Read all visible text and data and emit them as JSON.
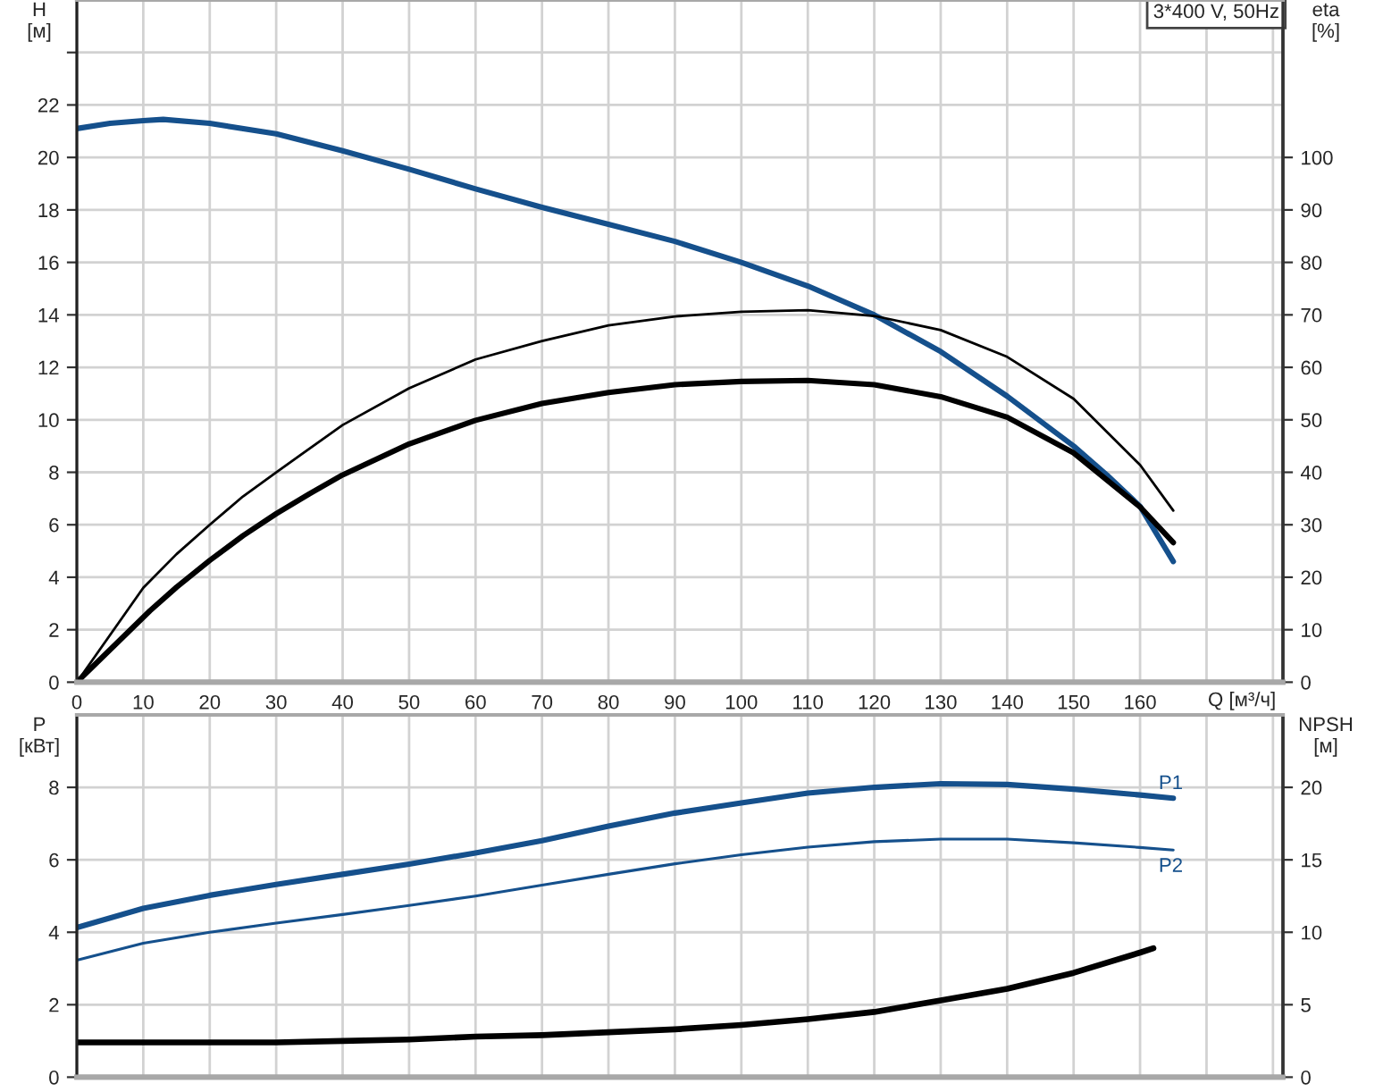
{
  "chart_data": [
    {
      "type": "line",
      "xlabel": "Q [м³/ч]",
      "ylabel": "H\n[м]",
      "y2label": "eta\n[%]",
      "annotations": [
        "3*400 V, 50Hz"
      ],
      "grid": true,
      "xlim": [
        0,
        181.5
      ],
      "xticks": [
        0,
        10,
        20,
        30,
        40,
        50,
        60,
        70,
        80,
        90,
        100,
        110,
        120,
        130,
        140,
        150,
        160,
        {
          "value": 170,
          "label": null
        },
        {
          "value": 180,
          "label": null
        }
      ],
      "ylim": [
        0,
        26
      ],
      "yticks": [
        0,
        2,
        4,
        6,
        8,
        10,
        12,
        14,
        16,
        18,
        20,
        22,
        {
          "value": 24,
          "label": null
        }
      ],
      "y2lim": [
        0,
        130
      ],
      "y2ticks": [
        0,
        10,
        20,
        30,
        40,
        50,
        60,
        70,
        80,
        90,
        100
      ],
      "series": [
        {
          "color": "#15508c",
          "x": [
            0,
            5,
            10,
            13,
            20,
            30,
            40,
            50,
            60,
            70,
            80,
            90,
            100,
            110,
            120,
            130,
            140,
            150,
            155,
            160,
            165
          ],
          "values": [
            21.1,
            21.3,
            21.4,
            21.45,
            21.3,
            20.9,
            20.25,
            19.55,
            18.8,
            18.1,
            17.45,
            16.8,
            16.0,
            15.1,
            14.0,
            12.6,
            10.9,
            9.0,
            7.9,
            6.7,
            4.6
          ]
        },
        {
          "color": "#000000",
          "axis": "y2",
          "x": [
            0,
            10,
            15,
            20,
            25,
            30,
            40,
            50,
            60,
            70,
            80,
            90,
            100,
            110,
            120,
            130,
            140,
            150,
            160,
            165
          ],
          "values": [
            0,
            18,
            24.4,
            30,
            35.4,
            40,
            49,
            56,
            61.5,
            65,
            68,
            69.7,
            70.6,
            70.9,
            69.8,
            67.1,
            62,
            54,
            41.4,
            32.7
          ]
        },
        {
          "color": "#000000",
          "axis": "y2",
          "x": [
            0,
            11,
            15,
            20,
            25,
            30,
            35,
            40,
            50,
            60,
            70,
            80,
            90,
            100,
            110,
            120,
            130,
            140,
            150,
            160,
            165
          ],
          "values": [
            0,
            13.6,
            18.1,
            23.2,
            27.9,
            32.1,
            35.9,
            39.5,
            45.4,
            49.9,
            53.1,
            55.2,
            56.7,
            57.3,
            57.5,
            56.7,
            54.4,
            50.5,
            43.7,
            33.4,
            26.6
          ]
        }
      ]
    },
    {
      "type": "line",
      "ylabel": "P\n[кВт]",
      "y2label": "NPSH\n[м]",
      "grid": true,
      "tick_labels": "y",
      "xlim": [
        0,
        181.5
      ],
      "xticks": [
        0,
        10,
        20,
        30,
        40,
        50,
        60,
        70,
        80,
        90,
        100,
        110,
        120,
        130,
        140,
        150,
        160,
        170,
        180
      ],
      "ylim": [
        0,
        10
      ],
      "yticks": [
        0,
        2,
        4,
        6,
        8
      ],
      "y2lim": [
        0,
        25
      ],
      "y2ticks": [
        0,
        5,
        10,
        15,
        20
      ],
      "series": [
        {
          "name": "P1",
          "color": "#15508c",
          "x": [
            0,
            10,
            20,
            30,
            40,
            50,
            60,
            70,
            80,
            90,
            100,
            110,
            120,
            130,
            140,
            150,
            160,
            165
          ],
          "values": [
            4.13,
            4.66,
            5.02,
            5.32,
            5.6,
            5.88,
            6.19,
            6.53,
            6.93,
            7.29,
            7.57,
            7.84,
            8.0,
            8.1,
            8.08,
            7.95,
            7.79,
            7.7
          ]
        },
        {
          "name": "P2",
          "color": "#15508c",
          "x": [
            0,
            10,
            20,
            30,
            40,
            50,
            60,
            70,
            80,
            90,
            100,
            110,
            120,
            130,
            140,
            150,
            160,
            165
          ],
          "values": [
            3.23,
            3.7,
            4.0,
            4.25,
            4.49,
            4.74,
            5.0,
            5.3,
            5.6,
            5.89,
            6.14,
            6.35,
            6.5,
            6.57,
            6.57,
            6.47,
            6.34,
            6.27
          ]
        },
        {
          "color": "#000000",
          "axis": "y2",
          "x": [
            0,
            11,
            20,
            30,
            40,
            50,
            60,
            70,
            80,
            90,
            100,
            110,
            120,
            130,
            140,
            150,
            160,
            162
          ],
          "values": [
            2.4,
            2.4,
            2.4,
            2.4,
            2.5,
            2.6,
            2.8,
            2.9,
            3.1,
            3.3,
            3.6,
            4.0,
            4.5,
            5.3,
            6.1,
            7.2,
            8.6,
            8.9
          ]
        }
      ]
    }
  ]
}
